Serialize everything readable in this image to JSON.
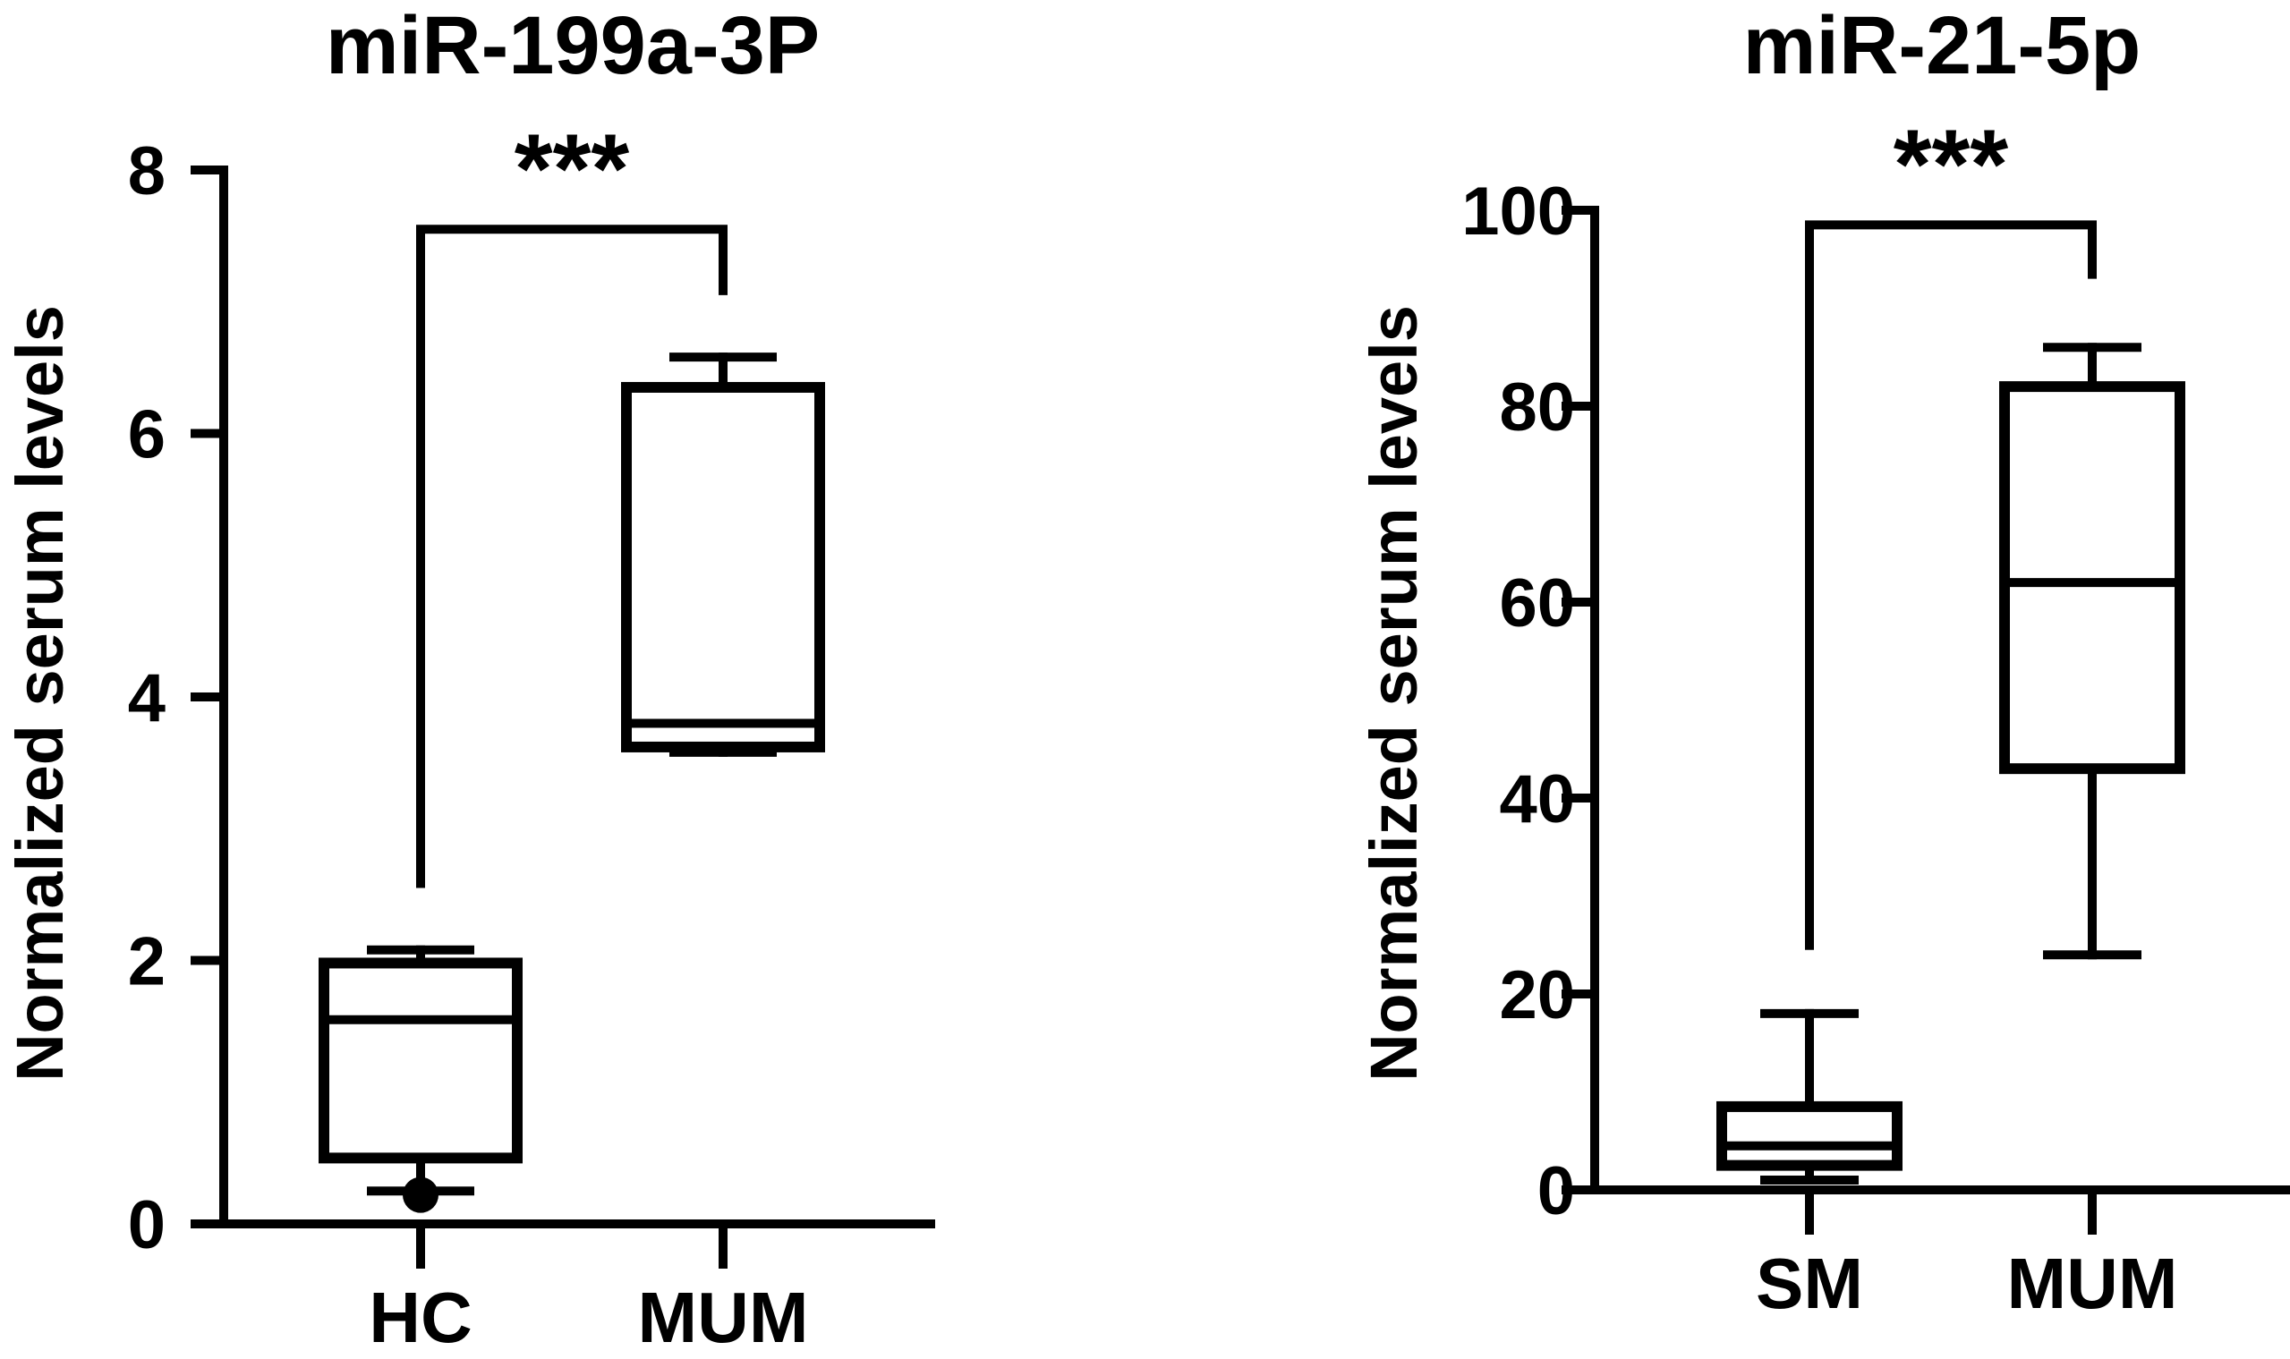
{
  "chart_data": [
    {
      "type": "box",
      "title": "miR-199a-3P",
      "ylabel": "Normalized serum levels",
      "xlabel": "",
      "ylim": [
        0,
        8
      ],
      "yticks": [
        "0",
        "2",
        "4",
        "6",
        "8"
      ],
      "categories": [
        "HC",
        "MUM"
      ],
      "boxes": [
        {
          "category": "HC",
          "min": 0.25,
          "q1": 0.5,
          "median": 1.55,
          "q3": 1.98,
          "max": 2.08,
          "outliers": [
            0.22
          ]
        },
        {
          "category": "MUM",
          "min": 3.58,
          "q1": 3.62,
          "median": 3.8,
          "q3": 6.35,
          "max": 6.58,
          "outliers": []
        }
      ],
      "significance": {
        "from": "HC",
        "to": "MUM",
        "label": "***",
        "y": 7.55,
        "left_tip": 2.55,
        "right_tip": 7.05
      },
      "grid": false
    },
    {
      "type": "box",
      "title": "miR-21-5p",
      "ylabel": "Normalized serum levels",
      "xlabel": "",
      "ylim": [
        0,
        100
      ],
      "yticks": [
        "0",
        "20",
        "40",
        "60",
        "80",
        "100"
      ],
      "categories": [
        "SM",
        "MUM"
      ],
      "boxes": [
        {
          "category": "SM",
          "min": 1,
          "q1": 2.5,
          "median": 4.5,
          "q3": 8.5,
          "max": 18,
          "outliers": []
        },
        {
          "category": "MUM",
          "min": 24,
          "q1": 43,
          "median": 62,
          "q3": 82,
          "max": 86,
          "outliers": []
        }
      ],
      "significance": {
        "from": "SM",
        "to": "MUM",
        "label": "***",
        "y": 98.5,
        "left_tip": 24.5,
        "right_tip": 93
      },
      "grid": false
    }
  ]
}
